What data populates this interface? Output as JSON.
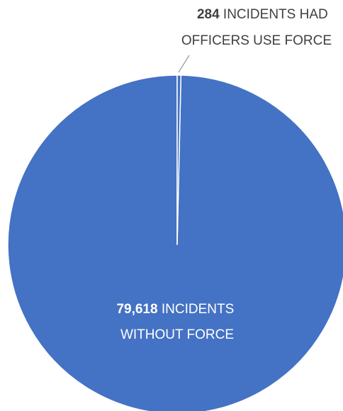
{
  "chart_data": {
    "type": "pie",
    "slices": [
      {
        "value": 79618,
        "value_label": "79,618",
        "text_line1": "INCIDENTS",
        "text_line2": "WITHOUT FORCE",
        "color": "#4472C4"
      },
      {
        "value": 284,
        "value_label": "284",
        "text_line1": "INCIDENTS HAD",
        "text_line2": "OFFICERS USE FORCE",
        "color": "#4472C4"
      }
    ],
    "label_color_inside": "#ffffff",
    "label_color_outside": "#404040",
    "slice_border_color": "#ffffff",
    "leader_line_color": "#7f7f7f",
    "legend": "none"
  }
}
